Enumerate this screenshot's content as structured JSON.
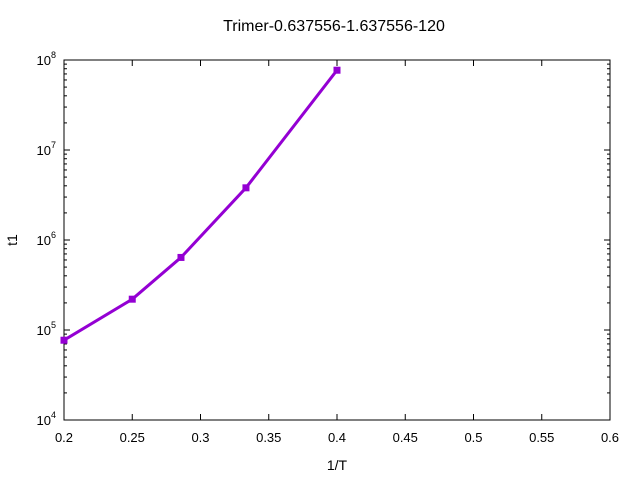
{
  "chart_data": {
    "type": "line",
    "title": "Trimer-0.637556-1.637556-120",
    "xlabel": "1/T",
    "ylabel": "t1",
    "xlim": [
      0.2,
      0.6
    ],
    "ylim": [
      10000,
      100000000
    ],
    "yscale": "log",
    "x_ticks": [
      "0.2",
      "0.25",
      "0.3",
      "0.35",
      "0.4",
      "0.45",
      "0.5",
      "0.55",
      "0.6"
    ],
    "y_ticks": [
      {
        "base": "10",
        "exp": "4"
      },
      {
        "base": "10",
        "exp": "5"
      },
      {
        "base": "10",
        "exp": "6"
      },
      {
        "base": "10",
        "exp": "7"
      },
      {
        "base": "10",
        "exp": "8"
      }
    ],
    "grid": false,
    "series": [
      {
        "color": "#9400d3",
        "marker": "square",
        "x": [
          0.2,
          0.25,
          0.2857,
          0.3333,
          0.4
        ],
        "y": [
          77000,
          220000,
          640000,
          3800000,
          77000000
        ]
      }
    ]
  }
}
